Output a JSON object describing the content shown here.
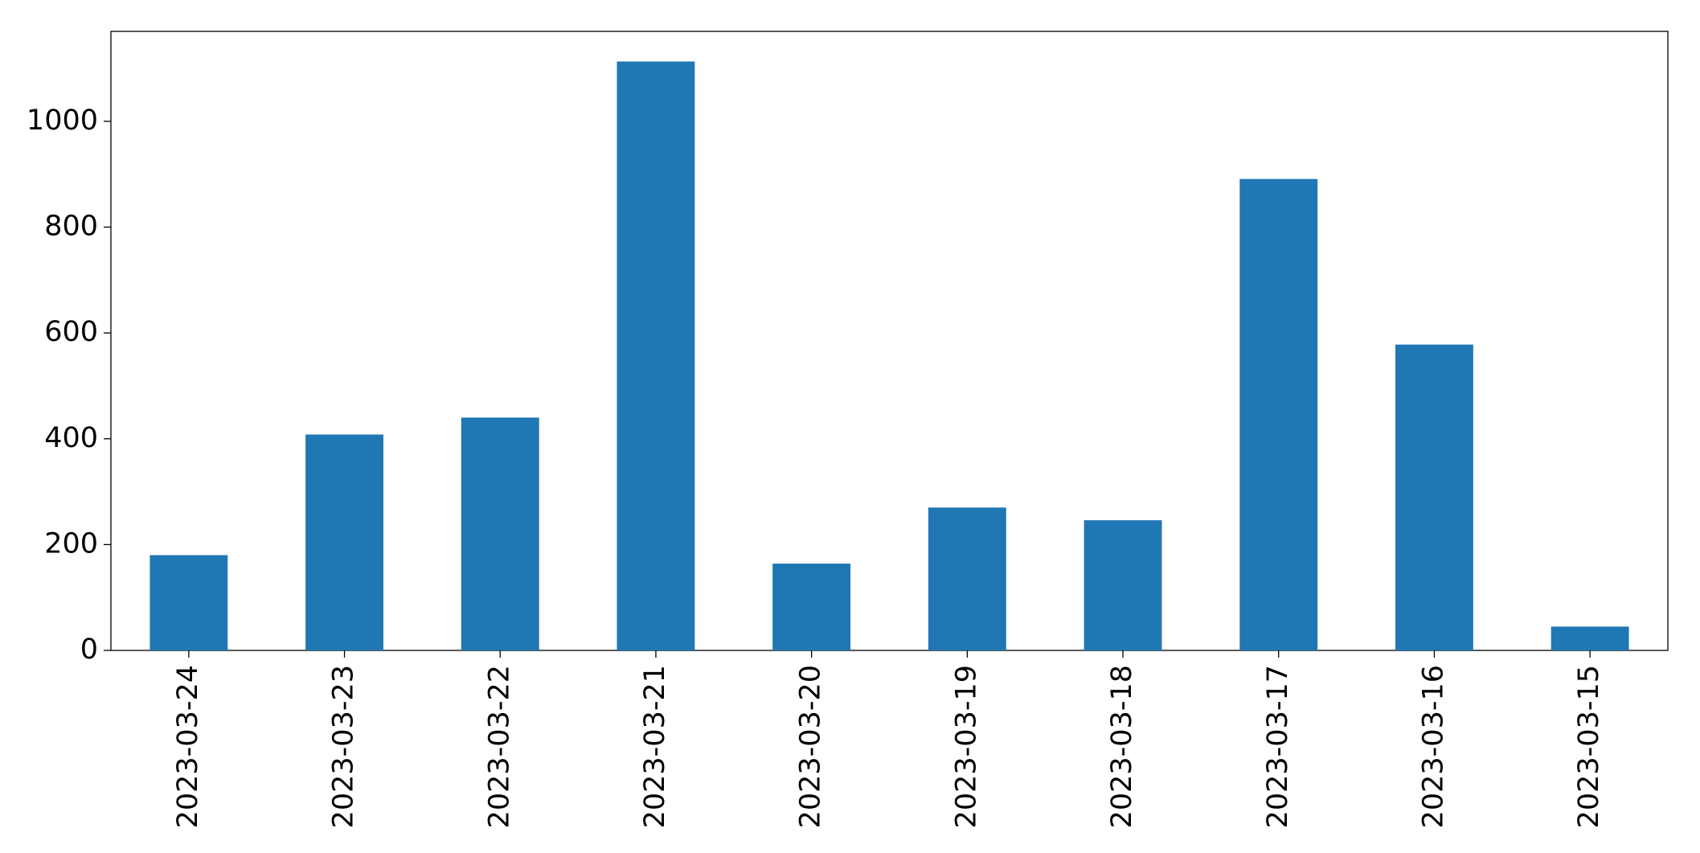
{
  "chart_data": {
    "type": "bar",
    "categories": [
      "2023-03-24",
      "2023-03-23",
      "2023-03-22",
      "2023-03-21",
      "2023-03-20",
      "2023-03-19",
      "2023-03-18",
      "2023-03-17",
      "2023-03-16",
      "2023-03-15"
    ],
    "values": [
      180,
      408,
      440,
      1113,
      164,
      270,
      246,
      891,
      578,
      45
    ],
    "color": "#1f77b4",
    "ylim": [
      0,
      1170
    ],
    "yticks": [
      0,
      200,
      400,
      600,
      800,
      1000
    ],
    "grid": false
  }
}
